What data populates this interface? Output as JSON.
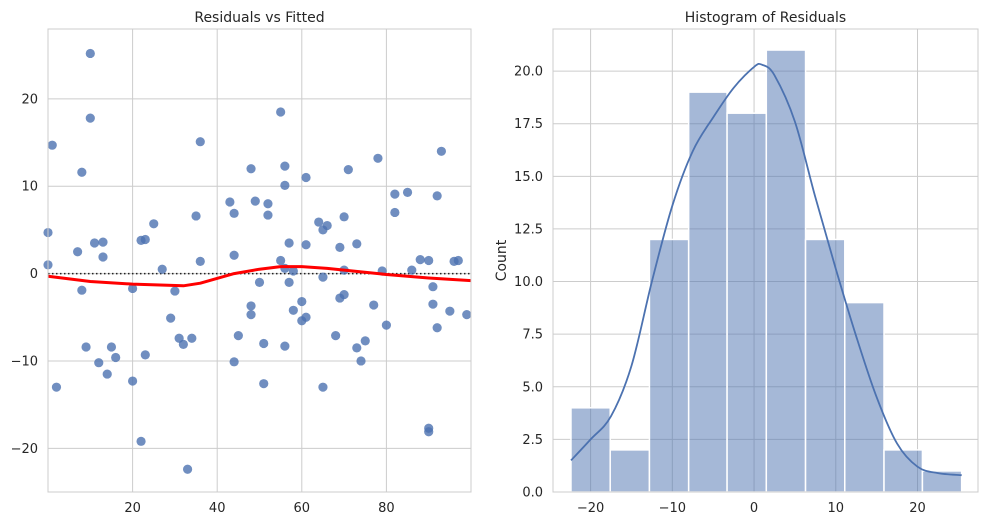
{
  "chart_data": [
    {
      "type": "scatter",
      "title": "Residuals vs Fitted",
      "xlabel": "",
      "ylabel": "",
      "xlim": [
        0,
        100
      ],
      "ylim": [
        -25,
        28
      ],
      "xticks": [
        20,
        40,
        60,
        80
      ],
      "yticks": [
        -20,
        -10,
        0,
        10,
        20
      ],
      "grid": true,
      "colors": {
        "points": "#4c72b0",
        "lowess": "#ff0000",
        "reference": "#222222"
      },
      "points": [
        [
          0,
          1.0
        ],
        [
          0,
          4.7
        ],
        [
          1,
          14.7
        ],
        [
          2,
          -13.0
        ],
        [
          7,
          2.5
        ],
        [
          8,
          -1.9
        ],
        [
          8,
          11.6
        ],
        [
          9,
          -8.4
        ],
        [
          10,
          25.2
        ],
        [
          10,
          17.8
        ],
        [
          11,
          3.5
        ],
        [
          12,
          -10.2
        ],
        [
          13,
          3.6
        ],
        [
          13,
          1.9
        ],
        [
          14,
          -11.5
        ],
        [
          15,
          -8.4
        ],
        [
          16,
          -9.6
        ],
        [
          20,
          -12.3
        ],
        [
          20,
          -1.7
        ],
        [
          22,
          3.8
        ],
        [
          22,
          -19.2
        ],
        [
          23,
          3.9
        ],
        [
          23,
          -9.3
        ],
        [
          25,
          5.7
        ],
        [
          27,
          0.5
        ],
        [
          29,
          -5.1
        ],
        [
          30,
          -2.0
        ],
        [
          31,
          -7.4
        ],
        [
          32,
          -8.1
        ],
        [
          33,
          -22.4
        ],
        [
          34,
          -7.4
        ],
        [
          35,
          6.6
        ],
        [
          36,
          15.1
        ],
        [
          36,
          1.4
        ],
        [
          43,
          8.2
        ],
        [
          44,
          6.9
        ],
        [
          44,
          2.1
        ],
        [
          44,
          -10.1
        ],
        [
          45,
          -7.1
        ],
        [
          48,
          -4.7
        ],
        [
          48,
          -3.7
        ],
        [
          48,
          12.0
        ],
        [
          49,
          8.3
        ],
        [
          50,
          -1.0
        ],
        [
          51,
          -8.0
        ],
        [
          51,
          -12.6
        ],
        [
          52,
          8.0
        ],
        [
          52,
          6.7
        ],
        [
          55,
          18.5
        ],
        [
          55,
          1.5
        ],
        [
          56,
          12.3
        ],
        [
          56,
          10.1
        ],
        [
          56,
          0.6
        ],
        [
          56,
          -8.3
        ],
        [
          57,
          -1.0
        ],
        [
          57,
          3.5
        ],
        [
          58,
          0.3
        ],
        [
          58,
          -4.2
        ],
        [
          60,
          -3.2
        ],
        [
          60,
          -5.4
        ],
        [
          61,
          -5.0
        ],
        [
          61,
          3.3
        ],
        [
          61,
          11.0
        ],
        [
          64,
          5.9
        ],
        [
          65,
          5.0
        ],
        [
          65,
          -0.4
        ],
        [
          65,
          -13.0
        ],
        [
          66,
          5.5
        ],
        [
          68,
          -7.1
        ],
        [
          69,
          3.0
        ],
        [
          69,
          -2.8
        ],
        [
          70,
          0.4
        ],
        [
          70,
          -2.4
        ],
        [
          70,
          6.5
        ],
        [
          71,
          11.9
        ],
        [
          73,
          3.4
        ],
        [
          73,
          -8.5
        ],
        [
          74,
          -10.0
        ],
        [
          75,
          -7.7
        ],
        [
          77,
          -3.6
        ],
        [
          78,
          13.2
        ],
        [
          79,
          0.3
        ],
        [
          80,
          -5.9
        ],
        [
          82,
          9.1
        ],
        [
          82,
          7.0
        ],
        [
          85,
          9.3
        ],
        [
          86,
          0.4
        ],
        [
          88,
          1.6
        ],
        [
          90,
          1.5
        ],
        [
          90,
          -17.7
        ],
        [
          90,
          -18.1
        ],
        [
          91,
          -3.5
        ],
        [
          91,
          -1.5
        ],
        [
          92,
          8.9
        ],
        [
          92,
          -6.2
        ],
        [
          93,
          14.0
        ],
        [
          95,
          -4.3
        ],
        [
          96,
          1.4
        ],
        [
          97,
          1.5
        ],
        [
          99,
          -4.7
        ]
      ],
      "lowess": {
        "x": [
          0,
          10,
          20,
          32,
          36,
          44,
          50,
          55,
          60,
          66,
          72,
          80,
          90,
          100
        ],
        "y": [
          -0.3,
          -0.9,
          -1.2,
          -1.4,
          -1.1,
          0.0,
          0.5,
          0.8,
          0.8,
          0.6,
          0.3,
          -0.1,
          -0.5,
          -0.8
        ]
      },
      "reference_line": 0
    },
    {
      "type": "bar",
      "title": "Histogram of Residuals",
      "xlabel": "",
      "ylabel": "Count",
      "xlim": [
        -24.6,
        27.4
      ],
      "ylim": [
        0,
        22
      ],
      "xticks": [
        -20,
        -10,
        0,
        10,
        20
      ],
      "yticks": [
        "0.0",
        "2.5",
        "5.0",
        "7.5",
        "10.0",
        "12.5",
        "15.0",
        "17.5",
        "20.0"
      ],
      "grid": true,
      "colors": {
        "bars": "#4c72b0",
        "kde": "#4c72b0"
      },
      "bins": [
        {
          "start": -22.4,
          "end": -17.6,
          "count": 4
        },
        {
          "start": -17.6,
          "end": -12.8,
          "count": 2
        },
        {
          "start": -12.8,
          "end": -8.0,
          "count": 12
        },
        {
          "start": -8.0,
          "end": -3.3,
          "count": 19
        },
        {
          "start": -3.3,
          "end": 1.5,
          "count": 18
        },
        {
          "start": 1.5,
          "end": 6.3,
          "count": 21
        },
        {
          "start": 6.3,
          "end": 11.1,
          "count": 12
        },
        {
          "start": 11.1,
          "end": 15.9,
          "count": 9
        },
        {
          "start": 15.9,
          "end": 20.6,
          "count": 2
        },
        {
          "start": 20.6,
          "end": 25.4,
          "count": 1
        }
      ],
      "kde": {
        "x": [
          -22.4,
          -20,
          -17.5,
          -15,
          -12.5,
          -10,
          -7.5,
          -5,
          -2.5,
          0,
          1,
          2.5,
          5,
          7.5,
          10,
          12.5,
          15,
          17.5,
          20,
          22.5,
          25.4
        ],
        "y": [
          1.5,
          2.5,
          3.6,
          6.0,
          10.0,
          13.6,
          16.2,
          17.8,
          19.2,
          20.2,
          20.3,
          19.8,
          17.6,
          14.0,
          10.6,
          7.4,
          4.5,
          2.3,
          1.2,
          0.9,
          0.8
        ]
      }
    }
  ]
}
